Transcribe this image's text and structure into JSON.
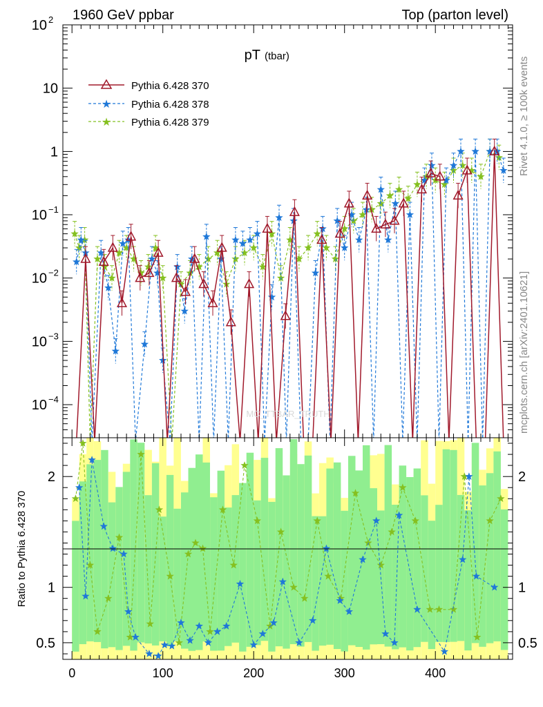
{
  "header": {
    "left": "1960 GeV ppbar",
    "right": "Top (parton level)"
  },
  "side_labels": {
    "rivet": "Rivet 4.1.0, ≥ 100k events",
    "mcplots": "mcplots.cern.ch [arXiv:2401.10621]"
  },
  "watermark": "MC_TTBAR_TRUTH",
  "colors": {
    "s370": "#a0182a",
    "s378": "#1f78d8",
    "s379": "#85c020",
    "band_green": "#90ee90",
    "band_yellow": "#ffff90"
  },
  "chart_data": [
    {
      "type": "line",
      "title": "pT",
      "title_sub": "(tbar)",
      "yscale": "log",
      "xlim": [
        -10,
        485
      ],
      "ylim": [
        3e-05,
        100
      ],
      "xticks": [
        0,
        100,
        200,
        300,
        400
      ],
      "ytick_labels": [
        "10^-4",
        "10^-3",
        "10^-2",
        "10^-1",
        "1",
        "10",
        "10^2"
      ],
      "legend_position": "top-left",
      "series": [
        {
          "name": "Pythia 6.428 370",
          "style": "solid line, open triangle markers",
          "x": [
            5,
            15,
            25,
            35,
            45,
            55,
            65,
            75,
            85,
            95,
            105,
            115,
            125,
            135,
            145,
            155,
            165,
            175,
            185,
            195,
            205,
            215,
            225,
            235,
            245,
            255,
            265,
            275,
            285,
            295,
            305,
            315,
            325,
            335,
            345,
            355,
            365,
            375,
            385,
            395,
            405,
            415,
            425,
            435,
            445,
            455,
            465,
            475
          ],
          "values": [
            0,
            0.02,
            0,
            0.018,
            0.03,
            0.004,
            0.045,
            0.01,
            0.012,
            0.025,
            0,
            0.01,
            0.006,
            0.02,
            0.008,
            0.004,
            0.03,
            0.002,
            0,
            0.008,
            0,
            0.06,
            0,
            0.0025,
            0.11,
            0,
            0,
            0.04,
            0,
            0.05,
            0.15,
            0,
            0.2,
            0.06,
            0.07,
            0.08,
            0.15,
            0,
            0.25,
            0.45,
            0.4,
            0,
            0.2,
            0.5,
            0,
            0,
            1,
            0
          ]
        },
        {
          "name": "Pythia 6.428 378",
          "style": "dashed line, star markers",
          "x": [
            5,
            10,
            15,
            22,
            32,
            40,
            48,
            56,
            62,
            70,
            80,
            88,
            94,
            100,
            108,
            116,
            124,
            132,
            140,
            148,
            156,
            164,
            172,
            180,
            188,
            196,
            204,
            212,
            220,
            228,
            236,
            244,
            252,
            260,
            268,
            276,
            284,
            292,
            300,
            308,
            316,
            324,
            332,
            340,
            348,
            356,
            364,
            372,
            380,
            388,
            396,
            404,
            412,
            420,
            428,
            436,
            444,
            452,
            460,
            468,
            475
          ],
          "values": [
            0.018,
            0.04,
            0.025,
            0,
            0.025,
            0.007,
            0.0007,
            0.035,
            0.04,
            0,
            0.0009,
            0.02,
            0.012,
            0.0005,
            0,
            0.015,
            0.003,
            0.02,
            0,
            0.045,
            0,
            0.02,
            0,
            0.04,
            0.035,
            0.04,
            0.05,
            0,
            0.005,
            0.09,
            0,
            0.08,
            0,
            0,
            0.012,
            0.06,
            0,
            0.08,
            0.03,
            0.1,
            0.04,
            0.12,
            0,
            0.25,
            0.04,
            0.15,
            0,
            0.1,
            0,
            0.35,
            0.6,
            0,
            0.35,
            0.6,
            1,
            0,
            1,
            0,
            1,
            1,
            0.5
          ]
        },
        {
          "name": "Pythia 6.428 379",
          "style": "dashed line, star markers",
          "x": [
            3,
            8,
            14,
            20,
            28,
            36,
            44,
            52,
            60,
            68,
            76,
            84,
            92,
            100,
            110,
            120,
            130,
            140,
            150,
            160,
            170,
            180,
            190,
            200,
            210,
            220,
            230,
            240,
            250,
            260,
            270,
            280,
            290,
            300,
            310,
            320,
            330,
            340,
            350,
            360,
            370,
            380,
            390,
            400,
            410,
            420,
            430,
            440,
            450,
            460,
            470
          ],
          "values": [
            0.05,
            0.03,
            0.04,
            0,
            0.02,
            0.015,
            0.01,
            0.025,
            0.03,
            0.02,
            0.012,
            0.015,
            0.03,
            0.01,
            0,
            0.008,
            0.012,
            0.015,
            0.02,
            0.025,
            0.008,
            0.02,
            0.025,
            0.03,
            0.015,
            0.05,
            0.01,
            0.04,
            0.02,
            0.03,
            0.05,
            0.03,
            0.02,
            0.06,
            0.08,
            0.1,
            0.12,
            0.15,
            0.2,
            0.25,
            0.18,
            0.3,
            0.4,
            0.35,
            0.3,
            0.5,
            0.6,
            0.5,
            0.4,
            1,
            0.8
          ]
        }
      ]
    },
    {
      "type": "line",
      "ylabel": "Ratio to Pythia 6.428 370",
      "xlim": [
        -10,
        485
      ],
      "ylim": [
        0.35,
        2.35
      ],
      "yticks": [
        0.5,
        1,
        2
      ],
      "series": [
        {
          "name": "Pythia 6.428 378 / 370",
          "x": [
            8,
            15,
            22,
            35,
            45,
            57,
            62,
            70,
            85,
            95,
            102,
            110,
            120,
            130,
            140,
            150,
            160,
            170,
            185,
            200,
            210,
            222,
            232,
            250,
            265,
            280,
            295,
            305,
            320,
            335,
            345,
            355,
            360,
            380,
            410,
            430,
            437,
            445,
            465
          ],
          "values": [
            1.9,
            0.92,
            2.15,
            1.55,
            1.35,
            1.3,
            0.78,
            0.55,
            0.4,
            0.38,
            0.48,
            0.47,
            0.68,
            0.52,
            0.65,
            0.5,
            0.6,
            0.65,
            1.03,
            0.48,
            0.58,
            0.68,
            1.05,
            0.5,
            0.7,
            1.35,
            0.88,
            0.78,
            1.25,
            1.6,
            0.58,
            0.5,
            1.65,
            0.8,
            0.42,
            1.25,
            2,
            1.1,
            1
          ]
        },
        {
          "name": "Pythia 6.428 379 / 370",
          "x": [
            4,
            12,
            20,
            28,
            40,
            52,
            64,
            76,
            86,
            96,
            108,
            118,
            128,
            136,
            144,
            152,
            166,
            178,
            190,
            204,
            218,
            230,
            244,
            256,
            270,
            282,
            296,
            312,
            326,
            340,
            352,
            364,
            378,
            394,
            404,
            420,
            432,
            446,
            460,
            472
          ],
          "values": [
            1.8,
            2.3,
            1.2,
            0.6,
            0.9,
            1.45,
            0.55,
            2.2,
            0.67,
            1.7,
            1.1,
            0.5,
            1.3,
            1.4,
            1.35,
            0.6,
            1.7,
            1.2,
            2.1,
            1.6,
            0.65,
            1.5,
            1.0,
            0.9,
            1.6,
            1.1,
            0.9,
            1.85,
            1.4,
            1.2,
            1.5,
            1.9,
            1.6,
            0.8,
            0.8,
            0.8,
            2,
            0.55,
            1.6,
            1.8
          ]
        }
      ]
    }
  ]
}
